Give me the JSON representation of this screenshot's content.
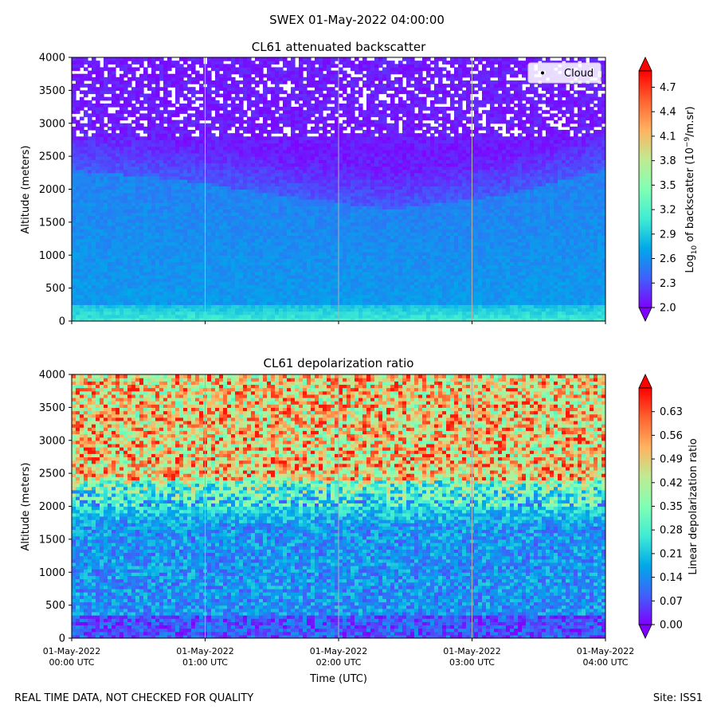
{
  "suptitle": "SWEX 01-May-2022 04:00:00",
  "footer": {
    "left": "REAL TIME DATA, NOT CHECKED FOR QUALITY",
    "right": "Site: ISS1"
  },
  "colors": {
    "rainbow": [
      "#8000ff",
      "#3f61fa",
      "#00a9e9",
      "#40ecd3",
      "#80ffb4",
      "#bfeb93",
      "#ffb360",
      "#ff6230",
      "#ff0000"
    ]
  },
  "chart_data": [
    {
      "type": "heatmap",
      "title": "CL61 attenuated backscatter",
      "ylabel": "Altitude (meters)",
      "ylim": [
        0,
        4000
      ],
      "yticks": [
        0,
        500,
        1000,
        1500,
        2000,
        2500,
        3000,
        3500,
        4000
      ],
      "xlim": [
        0,
        4
      ],
      "xticks": [
        0,
        1,
        2,
        3,
        4
      ],
      "xticklabels": [
        "01-May-2022\n00:00 UTC",
        "01-May-2022\n01:00 UTC",
        "01-May-2022\n02:00 UTC",
        "01-May-2022\n03:00 UTC",
        "01-May-2022\n04:00 UTC"
      ],
      "legend": {
        "label": "Cloud",
        "placement": "top-right"
      },
      "colorbar": {
        "label_prefix": "Log",
        "label_sub": "10",
        "label_mid": " of backscatter (10",
        "label_sup": "−9",
        "label_suffix": "/m.sr)",
        "vmin": 2.0,
        "vmax": 4.9,
        "ticks": [
          "2.0",
          "2.3",
          "2.6",
          "2.9",
          "3.2",
          "3.5",
          "3.8",
          "4.1",
          "4.4",
          "4.7"
        ],
        "extend": "both"
      },
      "field_description": {
        "surface_layer_value": 3.1,
        "boundary_layer_value": 2.65,
        "boundary_layer_top_m": [
          2300,
          2150,
          1900,
          1700,
          1900,
          2300
        ],
        "free_troposphere_value": 2.1,
        "noisy_above_m": 2800
      }
    },
    {
      "type": "heatmap",
      "title": "CL61 depolarization ratio",
      "ylabel": "Altitude (meters)",
      "xlabel": "Time (UTC)",
      "ylim": [
        0,
        4000
      ],
      "yticks": [
        0,
        500,
        1000,
        1500,
        2000,
        2500,
        3000,
        3500,
        4000
      ],
      "xlim": [
        0,
        4
      ],
      "xticks": [
        0,
        1,
        2,
        3,
        4
      ],
      "xticklabels": [
        "01-May-2022\n00:00 UTC",
        "01-May-2022\n01:00 UTC",
        "01-May-2022\n02:00 UTC",
        "01-May-2022\n03:00 UTC",
        "01-May-2022\n04:00 UTC"
      ],
      "colorbar": {
        "label": "Linear depolarization ratio",
        "vmin": 0.0,
        "vmax": 0.7,
        "ticks": [
          "0.00",
          "0.07",
          "0.14",
          "0.21",
          "0.28",
          "0.35",
          "0.42",
          "0.49",
          "0.56",
          "0.63"
        ],
        "extend": "both"
      },
      "field_description": {
        "surface_value": 0.08,
        "lower_value": 0.15,
        "mid_value": 0.3,
        "upper_value": 0.48,
        "transition_altitude_m": 2000
      }
    }
  ]
}
